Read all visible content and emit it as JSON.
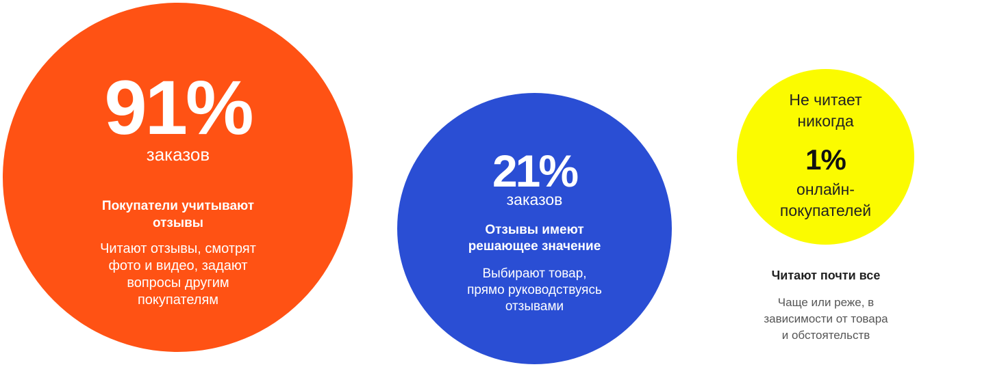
{
  "colors": {
    "orange": "#ff5214",
    "blue": "#2a4ed4",
    "yellow": "#fbfb00",
    "dark": "#222222",
    "gray": "#555555"
  },
  "stats": [
    {
      "percent": "91%",
      "unit": "заказов",
      "heading": "Покупатели учитывают\nотзывы",
      "description": "Читают отзывы, смотрят\nфото и видео, задают\nвопросы другим\nпокупателям"
    },
    {
      "percent": "21%",
      "unit": "заказов",
      "heading": "Отзывы имеют\nрешающее значение",
      "description": "Выбирают товар,\nпрямо руководствуясь\nотзывами"
    },
    {
      "top_label": "Не читает\nникогда",
      "percent": "1%",
      "unit": "онлайн-\nпокупателей",
      "heading": "Читают почти все",
      "description": "Чаще или реже, в\nзависимости от товара\nи обстоятельств"
    }
  ]
}
